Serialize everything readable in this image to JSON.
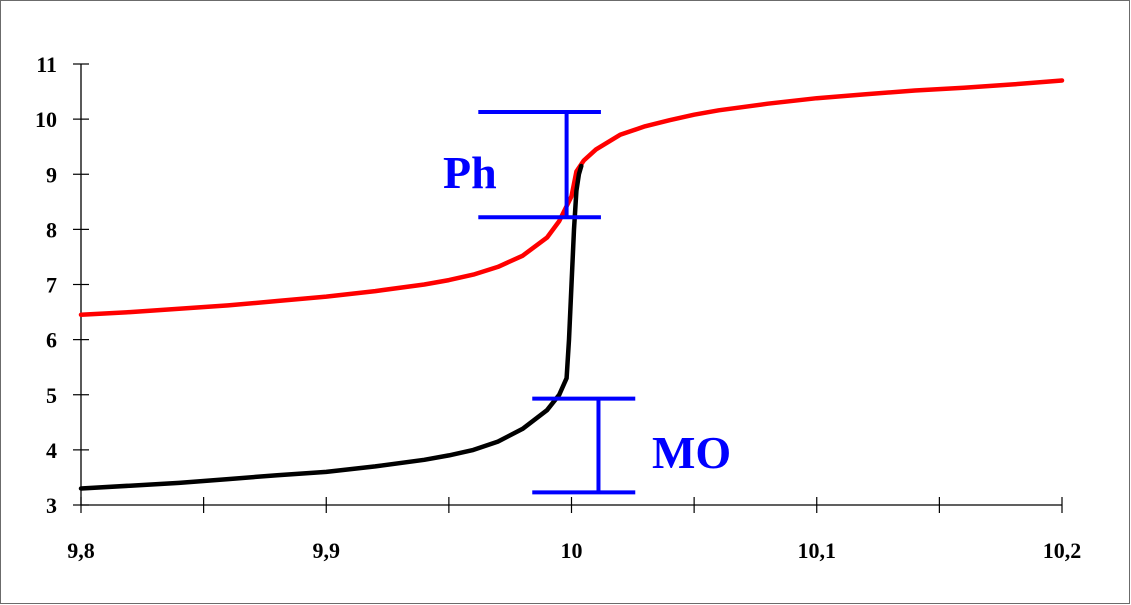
{
  "chart_data": {
    "type": "line",
    "title": "",
    "xlabel": "",
    "ylabel": "",
    "xlim": [
      9.8,
      10.2
    ],
    "ylim": [
      3,
      11
    ],
    "x_tick_labels": [
      "9,8",
      "9,9",
      "10",
      "10,1",
      "10,2"
    ],
    "x_ticks": [
      9.8,
      9.9,
      10,
      10.1,
      10.2
    ],
    "y_tick_labels": [
      "3",
      "4",
      "5",
      "6",
      "7",
      "8",
      "9",
      "10",
      "11"
    ],
    "y_ticks": [
      3,
      4,
      5,
      6,
      7,
      8,
      9,
      10,
      11
    ],
    "grid": false,
    "legend": "none",
    "series": [
      {
        "color": "#ff0000",
        "x": [
          9.8,
          9.82,
          9.84,
          9.86,
          9.88,
          9.9,
          9.92,
          9.94,
          9.95,
          9.96,
          9.97,
          9.98,
          9.99,
          9.995,
          10.0,
          10.002,
          10.005,
          10.01,
          10.02,
          10.03,
          10.04,
          10.05,
          10.06,
          10.08,
          10.1,
          10.12,
          10.14,
          10.16,
          10.18,
          10.2
        ],
        "y": [
          6.45,
          6.5,
          6.56,
          6.62,
          6.7,
          6.78,
          6.88,
          7.0,
          7.08,
          7.18,
          7.32,
          7.52,
          7.85,
          8.15,
          8.6,
          9.05,
          9.25,
          9.45,
          9.72,
          9.87,
          9.98,
          10.08,
          10.16,
          10.28,
          10.38,
          10.45,
          10.52,
          10.57,
          10.63,
          10.7
        ]
      },
      {
        "color": "#000000",
        "x": [
          9.8,
          9.82,
          9.84,
          9.86,
          9.88,
          9.9,
          9.92,
          9.94,
          9.95,
          9.96,
          9.97,
          9.98,
          9.99,
          9.995,
          9.998,
          9.999,
          10.0,
          10.001,
          10.002,
          10.003,
          10.004
        ],
        "y": [
          3.3,
          3.35,
          3.4,
          3.47,
          3.54,
          3.6,
          3.7,
          3.82,
          3.9,
          4.0,
          4.15,
          4.38,
          4.72,
          5.0,
          5.3,
          6.0,
          7.0,
          8.0,
          8.7,
          9.0,
          9.15
        ]
      }
    ],
    "annotations": [
      {
        "label": "Ph",
        "color": "#0000ff",
        "x": 9.998,
        "y_low": 8.22,
        "y_high": 10.13,
        "cap_x": [
          9.962,
          10.012
        ]
      },
      {
        "label": "MO",
        "color": "#0000ff",
        "x": 10.011,
        "y_low": 3.23,
        "y_high": 4.93,
        "cap_x": [
          9.984,
          10.026
        ]
      }
    ]
  }
}
